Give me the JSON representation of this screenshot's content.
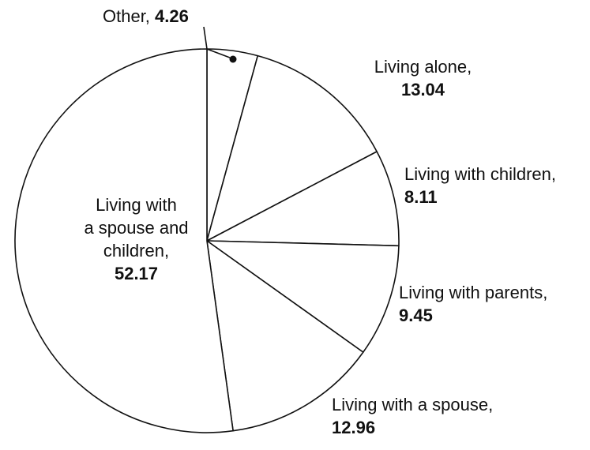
{
  "chart_data": {
    "type": "pie",
    "title": "",
    "legend_position": "none",
    "direction": "clockwise",
    "start_angle_deg": 0,
    "slice_fill": "#ffffff",
    "slice_stroke": "#111111",
    "categories": [
      "Other",
      "Living alone",
      "Living with children",
      "Living with parents",
      "Living with a spouse",
      "Living with a spouse and children"
    ],
    "values": [
      4.26,
      13.04,
      8.11,
      9.45,
      12.96,
      52.17
    ],
    "labels": {
      "other": {
        "name": "Other,",
        "value": "4.26"
      },
      "living_alone": {
        "name": "Living alone,",
        "value": "13.04"
      },
      "living_with_children": {
        "name": "Living with children,",
        "value": "8.11"
      },
      "living_with_parents": {
        "name": "Living with parents,",
        "value": "9.45"
      },
      "living_with_spouse": {
        "name": "Living with a spouse,",
        "value": "12.96"
      },
      "living_with_spouse_and_children": {
        "name_line1": "Living with",
        "name_line2": "a spouse and",
        "name_line3": "children,",
        "value": "52.17"
      }
    }
  }
}
